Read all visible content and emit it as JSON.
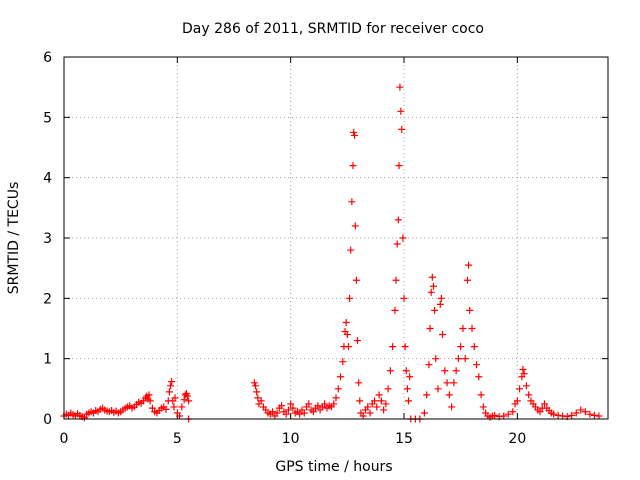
{
  "chart_data": {
    "type": "scatter",
    "title": "Day 286 of 2011, SRMTID for receiver coco",
    "xlabel": "GPS time / hours",
    "ylabel": "SRMTID / TECUs",
    "xlim": [
      0,
      24
    ],
    "ylim": [
      0,
      6
    ],
    "xticks": [
      0,
      5,
      10,
      15,
      20
    ],
    "yticks": [
      0,
      1,
      2,
      3,
      4,
      5,
      6
    ],
    "grid": true,
    "marker": "+",
    "series": [
      {
        "name": "SRMTID",
        "color": "#ff0000",
        "points": [
          [
            0.0,
            0.05
          ],
          [
            0.1,
            0.08
          ],
          [
            0.2,
            0.06
          ],
          [
            0.3,
            0.1
          ],
          [
            0.4,
            0.07
          ],
          [
            0.5,
            0.05
          ],
          [
            0.6,
            0.09
          ],
          [
            0.7,
            0.06
          ],
          [
            0.8,
            0.04
          ],
          [
            0.9,
            0.02
          ],
          [
            1.0,
            0.08
          ],
          [
            1.1,
            0.1
          ],
          [
            1.2,
            0.12
          ],
          [
            1.3,
            0.1
          ],
          [
            1.4,
            0.14
          ],
          [
            1.5,
            0.12
          ],
          [
            1.6,
            0.16
          ],
          [
            1.7,
            0.18
          ],
          [
            1.8,
            0.15
          ],
          [
            1.9,
            0.13
          ],
          [
            2.0,
            0.12
          ],
          [
            2.1,
            0.14
          ],
          [
            2.2,
            0.11
          ],
          [
            2.3,
            0.13
          ],
          [
            2.4,
            0.1
          ],
          [
            2.5,
            0.12
          ],
          [
            2.6,
            0.15
          ],
          [
            2.7,
            0.18
          ],
          [
            2.8,
            0.2
          ],
          [
            2.9,
            0.22
          ],
          [
            3.0,
            0.18
          ],
          [
            3.1,
            0.2
          ],
          [
            3.2,
            0.24
          ],
          [
            3.3,
            0.28
          ],
          [
            3.4,
            0.26
          ],
          [
            3.5,
            0.3
          ],
          [
            3.6,
            0.35
          ],
          [
            3.65,
            0.38
          ],
          [
            3.7,
            0.33
          ],
          [
            3.75,
            0.4
          ],
          [
            3.8,
            0.3
          ],
          [
            3.9,
            0.18
          ],
          [
            4.0,
            0.12
          ],
          [
            4.1,
            0.1
          ],
          [
            4.2,
            0.14
          ],
          [
            4.3,
            0.18
          ],
          [
            4.4,
            0.2
          ],
          [
            4.5,
            0.16
          ],
          [
            4.6,
            0.3
          ],
          [
            4.65,
            0.45
          ],
          [
            4.7,
            0.55
          ],
          [
            4.75,
            0.62
          ],
          [
            4.8,
            0.3
          ],
          [
            4.85,
            0.2
          ],
          [
            4.9,
            0.35
          ],
          [
            5.0,
            0.1
          ],
          [
            5.1,
            0.05
          ],
          [
            5.2,
            0.2
          ],
          [
            5.3,
            0.32
          ],
          [
            5.35,
            0.4
          ],
          [
            5.4,
            0.42
          ],
          [
            5.45,
            0.38
          ],
          [
            5.5,
            0.3
          ],
          [
            5.5,
            0.0
          ],
          [
            8.4,
            0.6
          ],
          [
            8.45,
            0.55
          ],
          [
            8.5,
            0.45
          ],
          [
            8.55,
            0.35
          ],
          [
            8.6,
            0.25
          ],
          [
            8.7,
            0.3
          ],
          [
            8.8,
            0.2
          ],
          [
            8.9,
            0.15
          ],
          [
            9.0,
            0.1
          ],
          [
            9.1,
            0.08
          ],
          [
            9.2,
            0.12
          ],
          [
            9.3,
            0.05
          ],
          [
            9.4,
            0.1
          ],
          [
            9.5,
            0.18
          ],
          [
            9.6,
            0.22
          ],
          [
            9.7,
            0.12
          ],
          [
            9.8,
            0.08
          ],
          [
            9.9,
            0.15
          ],
          [
            10.0,
            0.25
          ],
          [
            10.1,
            0.18
          ],
          [
            10.2,
            0.1
          ],
          [
            10.3,
            0.12
          ],
          [
            10.4,
            0.08
          ],
          [
            10.5,
            0.15
          ],
          [
            10.6,
            0.1
          ],
          [
            10.7,
            0.2
          ],
          [
            10.8,
            0.25
          ],
          [
            10.9,
            0.15
          ],
          [
            11.0,
            0.12
          ],
          [
            11.1,
            0.18
          ],
          [
            11.2,
            0.22
          ],
          [
            11.3,
            0.15
          ],
          [
            11.4,
            0.2
          ],
          [
            11.5,
            0.25
          ],
          [
            11.6,
            0.18
          ],
          [
            11.7,
            0.22
          ],
          [
            11.8,
            0.2
          ],
          [
            11.9,
            0.25
          ],
          [
            12.0,
            0.35
          ],
          [
            12.1,
            0.5
          ],
          [
            12.2,
            0.7
          ],
          [
            12.3,
            0.95
          ],
          [
            12.35,
            1.2
          ],
          [
            12.4,
            1.45
          ],
          [
            12.45,
            1.6
          ],
          [
            12.5,
            1.4
          ],
          [
            12.55,
            1.2
          ],
          [
            12.6,
            2.0
          ],
          [
            12.65,
            2.8
          ],
          [
            12.7,
            3.6
          ],
          [
            12.75,
            4.2
          ],
          [
            12.78,
            4.75
          ],
          [
            12.82,
            4.7
          ],
          [
            12.85,
            3.2
          ],
          [
            12.9,
            2.3
          ],
          [
            12.95,
            1.3
          ],
          [
            13.0,
            0.6
          ],
          [
            13.05,
            0.3
          ],
          [
            13.1,
            0.1
          ],
          [
            13.2,
            0.05
          ],
          [
            13.3,
            0.15
          ],
          [
            13.4,
            0.2
          ],
          [
            13.5,
            0.1
          ],
          [
            13.6,
            0.25
          ],
          [
            13.7,
            0.3
          ],
          [
            13.8,
            0.2
          ],
          [
            13.9,
            0.4
          ],
          [
            14.0,
            0.3
          ],
          [
            14.1,
            0.15
          ],
          [
            14.2,
            0.25
          ],
          [
            14.3,
            0.5
          ],
          [
            14.4,
            0.8
          ],
          [
            14.5,
            1.2
          ],
          [
            14.6,
            1.8
          ],
          [
            14.65,
            2.3
          ],
          [
            14.7,
            2.9
          ],
          [
            14.75,
            3.3
          ],
          [
            14.78,
            4.2
          ],
          [
            14.82,
            5.5
          ],
          [
            14.86,
            5.1
          ],
          [
            14.9,
            4.8
          ],
          [
            14.95,
            3.0
          ],
          [
            15.0,
            2.0
          ],
          [
            15.05,
            1.2
          ],
          [
            15.1,
            0.8
          ],
          [
            15.15,
            0.5
          ],
          [
            15.2,
            0.3
          ],
          [
            15.25,
            0.7
          ],
          [
            15.3,
            0.0
          ],
          [
            15.5,
            0.0
          ],
          [
            15.7,
            0.0
          ],
          [
            15.9,
            0.1
          ],
          [
            16.0,
            0.4
          ],
          [
            16.1,
            0.9
          ],
          [
            16.15,
            1.5
          ],
          [
            16.2,
            2.1
          ],
          [
            16.25,
            2.35
          ],
          [
            16.3,
            2.2
          ],
          [
            16.35,
            1.8
          ],
          [
            16.4,
            1.0
          ],
          [
            16.5,
            0.5
          ],
          [
            16.6,
            1.9
          ],
          [
            16.65,
            2.0
          ],
          [
            16.7,
            1.4
          ],
          [
            16.8,
            0.8
          ],
          [
            16.9,
            0.6
          ],
          [
            17.0,
            0.4
          ],
          [
            17.1,
            0.2
          ],
          [
            17.2,
            0.6
          ],
          [
            17.3,
            0.8
          ],
          [
            17.4,
            1.0
          ],
          [
            17.5,
            1.2
          ],
          [
            17.6,
            1.5
          ],
          [
            17.7,
            1.0
          ],
          [
            17.8,
            2.3
          ],
          [
            17.85,
            2.55
          ],
          [
            17.9,
            1.8
          ],
          [
            18.0,
            1.5
          ],
          [
            18.1,
            1.2
          ],
          [
            18.2,
            0.9
          ],
          [
            18.3,
            0.7
          ],
          [
            18.4,
            0.4
          ],
          [
            18.5,
            0.2
          ],
          [
            18.6,
            0.1
          ],
          [
            18.7,
            0.05
          ],
          [
            18.8,
            0.03
          ],
          [
            18.9,
            0.05
          ],
          [
            19.0,
            0.06
          ],
          [
            19.2,
            0.04
          ],
          [
            19.4,
            0.05
          ],
          [
            19.6,
            0.08
          ],
          [
            19.8,
            0.12
          ],
          [
            19.9,
            0.25
          ],
          [
            20.0,
            0.3
          ],
          [
            20.1,
            0.5
          ],
          [
            20.2,
            0.7
          ],
          [
            20.25,
            0.82
          ],
          [
            20.3,
            0.75
          ],
          [
            20.4,
            0.55
          ],
          [
            20.5,
            0.4
          ],
          [
            20.6,
            0.3
          ],
          [
            20.7,
            0.25
          ],
          [
            20.8,
            0.2
          ],
          [
            20.9,
            0.15
          ],
          [
            21.0,
            0.12
          ],
          [
            21.1,
            0.18
          ],
          [
            21.2,
            0.25
          ],
          [
            21.3,
            0.18
          ],
          [
            21.4,
            0.14
          ],
          [
            21.5,
            0.1
          ],
          [
            21.6,
            0.08
          ],
          [
            21.8,
            0.06
          ],
          [
            22.0,
            0.05
          ],
          [
            22.2,
            0.04
          ],
          [
            22.4,
            0.06
          ],
          [
            22.6,
            0.1
          ],
          [
            22.8,
            0.15
          ],
          [
            23.0,
            0.12
          ],
          [
            23.2,
            0.08
          ],
          [
            23.4,
            0.06
          ],
          [
            23.6,
            0.05
          ]
        ]
      }
    ]
  }
}
